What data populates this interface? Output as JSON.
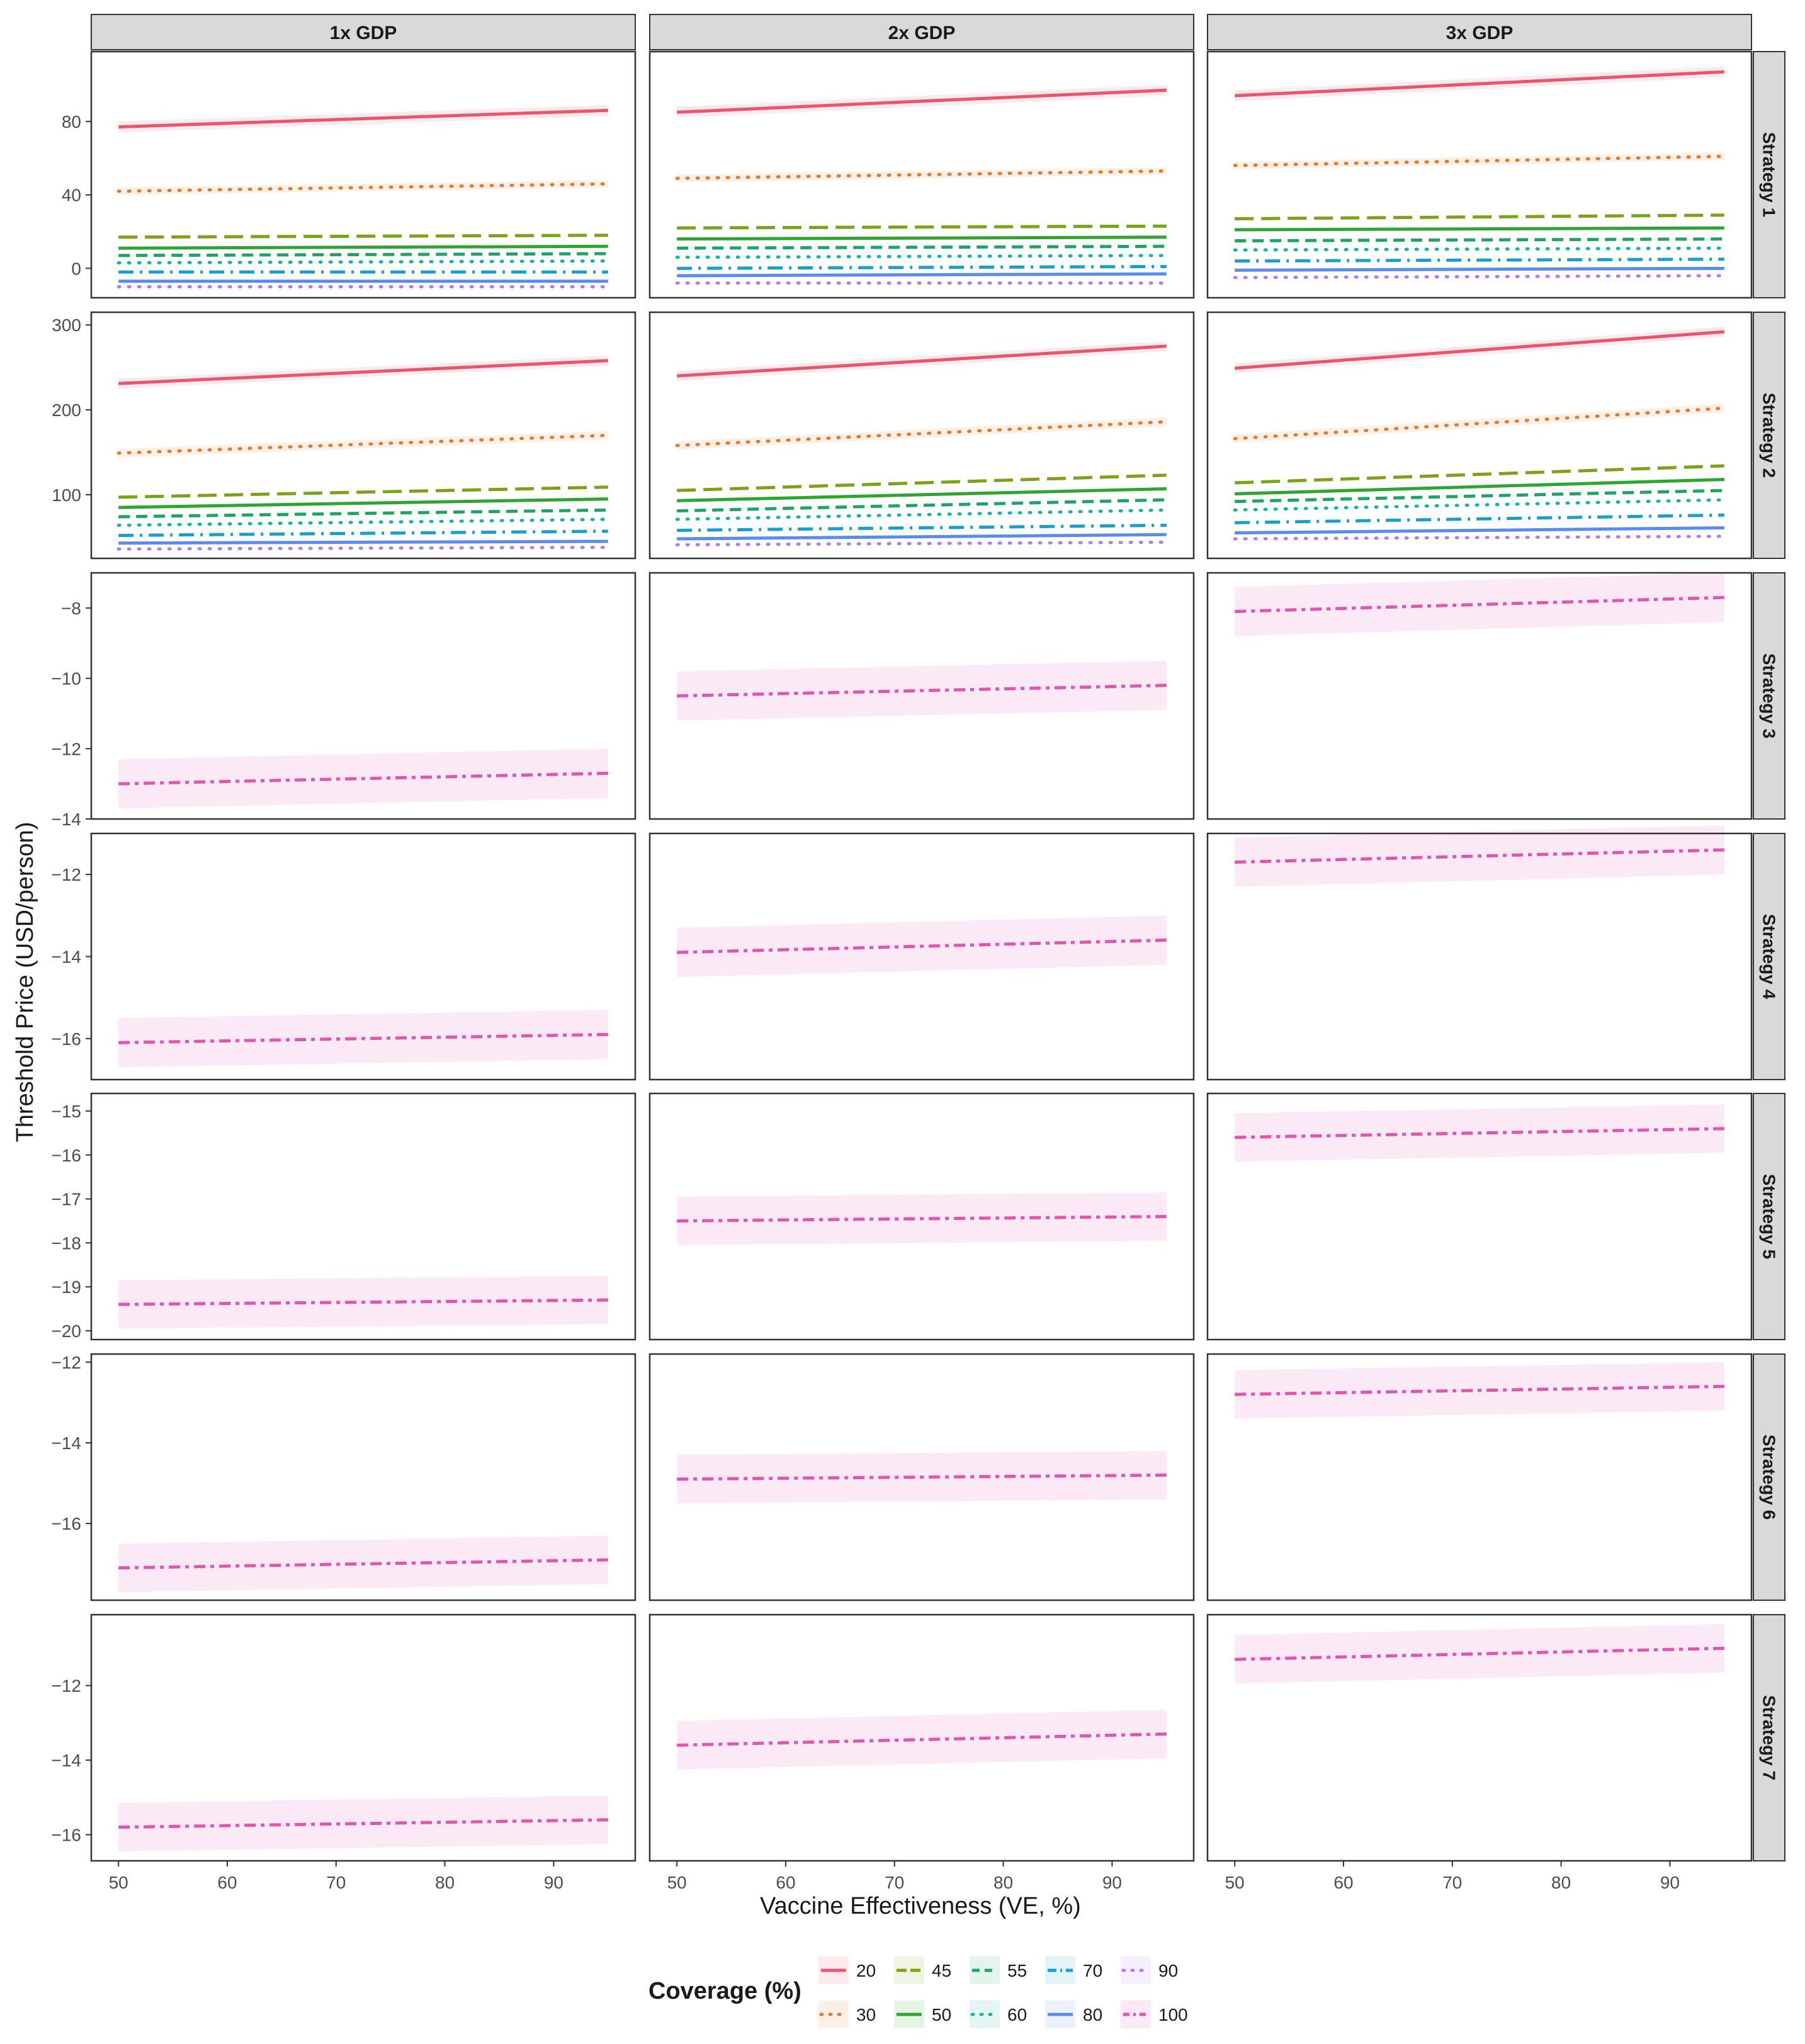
{
  "chart_data": {
    "type": "line",
    "facet_columns": [
      "1x GDP",
      "2x GDP",
      "3x GDP"
    ],
    "facet_rows": [
      "Strategy 1",
      "Strategy 2",
      "Strategy 3",
      "Strategy 4",
      "Strategy 5",
      "Strategy 6",
      "Strategy 7"
    ],
    "xlabel": "Vaccine Effectiveness (VE, %)",
    "ylabel": "Threshold Price (USD/person)",
    "x_ticks": [
      50,
      60,
      70,
      80,
      90
    ],
    "xlim": [
      47.5,
      97.5
    ],
    "x": [
      50,
      95
    ],
    "legend": {
      "title": "Coverage (%)",
      "position": "bottom",
      "items": [
        {
          "label": "20",
          "color": "#E8566E",
          "dash": "solid"
        },
        {
          "label": "30",
          "color": "#E07B2E",
          "dash": "dotted"
        },
        {
          "label": "45",
          "color": "#7BA31A",
          "dash": "longdash"
        },
        {
          "label": "50",
          "color": "#2EA52E",
          "dash": "solid"
        },
        {
          "label": "55",
          "color": "#1FA463",
          "dash": "dashed"
        },
        {
          "label": "60",
          "color": "#17B5A0",
          "dash": "dotted"
        },
        {
          "label": "70",
          "color": "#1AA0C8",
          "dash": "dashdot"
        },
        {
          "label": "80",
          "color": "#5A8DEB",
          "dash": "solid"
        },
        {
          "label": "90",
          "color": "#B57AF0",
          "dash": "dotted"
        },
        {
          "label": "100",
          "color": "#E055B2",
          "dash": "twodash"
        }
      ]
    },
    "panels": [
      {
        "row": "Strategy 1",
        "col": "1x GDP",
        "ylim": [
          -16,
          118
        ],
        "yticks": [
          0,
          40,
          80
        ],
        "series": [
          {
            "coverage": "20",
            "values": [
              77,
              86
            ],
            "band": 3
          },
          {
            "coverage": "30",
            "values": [
              42,
              46
            ],
            "band": 2
          },
          {
            "coverage": "45",
            "values": [
              17,
              18
            ]
          },
          {
            "coverage": "50",
            "values": [
              11,
              12
            ]
          },
          {
            "coverage": "55",
            "values": [
              7,
              8
            ]
          },
          {
            "coverage": "60",
            "values": [
              3,
              4
            ]
          },
          {
            "coverage": "70",
            "values": [
              -2,
              -2
            ]
          },
          {
            "coverage": "80",
            "values": [
              -7,
              -7
            ]
          },
          {
            "coverage": "90",
            "values": [
              -10,
              -10
            ]
          }
        ]
      },
      {
        "row": "Strategy 1",
        "col": "2x GDP",
        "ylim": [
          -16,
          118
        ],
        "yticks": [
          0,
          40,
          80
        ],
        "series": [
          {
            "coverage": "20",
            "values": [
              85,
              97
            ],
            "band": 3
          },
          {
            "coverage": "30",
            "values": [
              49,
              53
            ],
            "band": 2
          },
          {
            "coverage": "45",
            "values": [
              22,
              23
            ]
          },
          {
            "coverage": "50",
            "values": [
              16,
              17
            ]
          },
          {
            "coverage": "55",
            "values": [
              11,
              12
            ]
          },
          {
            "coverage": "60",
            "values": [
              6,
              7
            ]
          },
          {
            "coverage": "70",
            "values": [
              0,
              1
            ]
          },
          {
            "coverage": "80",
            "values": [
              -4,
              -3
            ]
          },
          {
            "coverage": "90",
            "values": [
              -8,
              -8
            ]
          }
        ]
      },
      {
        "row": "Strategy 1",
        "col": "3x GDP",
        "ylim": [
          -16,
          118
        ],
        "yticks": [
          0,
          40,
          80
        ],
        "series": [
          {
            "coverage": "20",
            "values": [
              94,
              107
            ],
            "band": 3
          },
          {
            "coverage": "30",
            "values": [
              56,
              61
            ],
            "band": 2
          },
          {
            "coverage": "45",
            "values": [
              27,
              29
            ]
          },
          {
            "coverage": "50",
            "values": [
              21,
              22
            ]
          },
          {
            "coverage": "55",
            "values": [
              15,
              16
            ]
          },
          {
            "coverage": "60",
            "values": [
              10,
              11
            ]
          },
          {
            "coverage": "70",
            "values": [
              4,
              5
            ]
          },
          {
            "coverage": "80",
            "values": [
              -1,
              0
            ]
          },
          {
            "coverage": "90",
            "values": [
              -5,
              -4
            ]
          }
        ]
      },
      {
        "row": "Strategy 2",
        "col": "1x GDP",
        "ylim": [
          25,
          315
        ],
        "yticks": [
          100,
          200,
          300
        ],
        "series": [
          {
            "coverage": "20",
            "values": [
              231,
              258
            ],
            "band": 6
          },
          {
            "coverage": "30",
            "values": [
              149,
              170
            ],
            "band": 5
          },
          {
            "coverage": "45",
            "values": [
              97,
              109
            ]
          },
          {
            "coverage": "50",
            "values": [
              85,
              95
            ]
          },
          {
            "coverage": "55",
            "values": [
              74,
              82
            ]
          },
          {
            "coverage": "60",
            "values": [
              64,
              71
            ]
          },
          {
            "coverage": "70",
            "values": [
              52,
              57
            ]
          },
          {
            "coverage": "80",
            "values": [
              43,
              45
            ]
          },
          {
            "coverage": "90",
            "values": [
              36,
              38
            ]
          }
        ]
      },
      {
        "row": "Strategy 2",
        "col": "2x GDP",
        "ylim": [
          25,
          315
        ],
        "yticks": [
          100,
          200,
          300
        ],
        "series": [
          {
            "coverage": "20",
            "values": [
              240,
              275
            ],
            "band": 6
          },
          {
            "coverage": "30",
            "values": [
              158,
              186
            ],
            "band": 5
          },
          {
            "coverage": "45",
            "values": [
              105,
              123
            ]
          },
          {
            "coverage": "50",
            "values": [
              93,
              107
            ]
          },
          {
            "coverage": "55",
            "values": [
              81,
              94
            ]
          },
          {
            "coverage": "60",
            "values": [
              71,
              82
            ]
          },
          {
            "coverage": "70",
            "values": [
              58,
              64
            ]
          },
          {
            "coverage": "80",
            "values": [
              48,
              53
            ]
          },
          {
            "coverage": "90",
            "values": [
              41,
              44
            ]
          }
        ]
      },
      {
        "row": "Strategy 2",
        "col": "3x GDP",
        "ylim": [
          25,
          315
        ],
        "yticks": [
          100,
          200,
          300
        ],
        "series": [
          {
            "coverage": "20",
            "values": [
              249,
              292
            ],
            "band": 6
          },
          {
            "coverage": "30",
            "values": [
              166,
              202
            ],
            "band": 5
          },
          {
            "coverage": "45",
            "values": [
              114,
              134
            ]
          },
          {
            "coverage": "50",
            "values": [
              101,
              118
            ]
          },
          {
            "coverage": "55",
            "values": [
              92,
              105
            ]
          },
          {
            "coverage": "60",
            "values": [
              82,
              94
            ]
          },
          {
            "coverage": "70",
            "values": [
              67,
              76
            ]
          },
          {
            "coverage": "80",
            "values": [
              55,
              61
            ]
          },
          {
            "coverage": "90",
            "values": [
              48,
              51
            ]
          }
        ]
      },
      {
        "row": "Strategy 3",
        "col": "1x GDP",
        "ylim": [
          -14,
          -7
        ],
        "yticks": [
          -14,
          -12,
          -10,
          -8
        ],
        "series": [
          {
            "coverage": "100",
            "values": [
              -13.0,
              -12.7
            ],
            "band": 0.7
          }
        ]
      },
      {
        "row": "Strategy 3",
        "col": "2x GDP",
        "ylim": [
          -14,
          -7
        ],
        "yticks": [
          -14,
          -12,
          -10,
          -8
        ],
        "series": [
          {
            "coverage": "100",
            "values": [
              -10.5,
              -10.2
            ],
            "band": 0.7
          }
        ]
      },
      {
        "row": "Strategy 3",
        "col": "3x GDP",
        "ylim": [
          -14,
          -7
        ],
        "yticks": [
          -14,
          -12,
          -10,
          -8
        ],
        "series": [
          {
            "coverage": "100",
            "values": [
              -8.1,
              -7.7
            ],
            "band": 0.7
          }
        ]
      },
      {
        "row": "Strategy 4",
        "col": "1x GDP",
        "ylim": [
          -17,
          -11
        ],
        "yticks": [
          -16,
          -14,
          -12
        ],
        "series": [
          {
            "coverage": "100",
            "values": [
              -16.1,
              -15.9
            ],
            "band": 0.6
          }
        ]
      },
      {
        "row": "Strategy 4",
        "col": "2x GDP",
        "ylim": [
          -17,
          -11
        ],
        "yticks": [
          -16,
          -14,
          -12
        ],
        "series": [
          {
            "coverage": "100",
            "values": [
              -13.9,
              -13.6
            ],
            "band": 0.6
          }
        ]
      },
      {
        "row": "Strategy 4",
        "col": "3x GDP",
        "ylim": [
          -17,
          -11
        ],
        "yticks": [
          -16,
          -14,
          -12
        ],
        "series": [
          {
            "coverage": "100",
            "values": [
              -11.7,
              -11.4
            ],
            "band": 0.6
          }
        ]
      },
      {
        "row": "Strategy 5",
        "col": "1x GDP",
        "ylim": [
          -20.2,
          -14.6
        ],
        "yticks": [
          -20,
          -19,
          -18,
          -17,
          -16,
          -15
        ],
        "series": [
          {
            "coverage": "100",
            "values": [
              -19.4,
              -19.3
            ],
            "band": 0.55
          }
        ]
      },
      {
        "row": "Strategy 5",
        "col": "2x GDP",
        "ylim": [
          -20.2,
          -14.6
        ],
        "yticks": [
          -20,
          -19,
          -18,
          -17,
          -16,
          -15
        ],
        "series": [
          {
            "coverage": "100",
            "values": [
              -17.5,
              -17.4
            ],
            "band": 0.55
          }
        ]
      },
      {
        "row": "Strategy 5",
        "col": "3x GDP",
        "ylim": [
          -20.2,
          -14.6
        ],
        "yticks": [
          -20,
          -19,
          -18,
          -17,
          -16,
          -15
        ],
        "series": [
          {
            "coverage": "100",
            "values": [
              -15.6,
              -15.4
            ],
            "band": 0.55
          }
        ]
      },
      {
        "row": "Strategy 6",
        "col": "1x GDP",
        "ylim": [
          -17.9,
          -11.8
        ],
        "yticks": [
          -16,
          -14,
          -12
        ],
        "series": [
          {
            "coverage": "100",
            "values": [
              -17.1,
              -16.9
            ],
            "band": 0.6
          }
        ]
      },
      {
        "row": "Strategy 6",
        "col": "2x GDP",
        "ylim": [
          -17.9,
          -11.8
        ],
        "yticks": [
          -16,
          -14,
          -12
        ],
        "series": [
          {
            "coverage": "100",
            "values": [
              -14.9,
              -14.8
            ],
            "band": 0.6
          }
        ]
      },
      {
        "row": "Strategy 6",
        "col": "3x GDP",
        "ylim": [
          -17.9,
          -11.8
        ],
        "yticks": [
          -16,
          -14,
          -12
        ],
        "series": [
          {
            "coverage": "100",
            "values": [
              -12.8,
              -12.6
            ],
            "band": 0.6
          }
        ]
      },
      {
        "row": "Strategy 7",
        "col": "1x GDP",
        "ylim": [
          -16.7,
          -10.1
        ],
        "yticks": [
          -16,
          -14,
          -12
        ],
        "series": [
          {
            "coverage": "100",
            "values": [
              -15.8,
              -15.6
            ],
            "band": 0.65
          }
        ]
      },
      {
        "row": "Strategy 7",
        "col": "2x GDP",
        "ylim": [
          -16.7,
          -10.1
        ],
        "yticks": [
          -16,
          -14,
          -12
        ],
        "series": [
          {
            "coverage": "100",
            "values": [
              -13.6,
              -13.3
            ],
            "band": 0.65
          }
        ]
      },
      {
        "row": "Strategy 7",
        "col": "3x GDP",
        "ylim": [
          -16.7,
          -10.1
        ],
        "yticks": [
          -16,
          -14,
          -12
        ],
        "series": [
          {
            "coverage": "100",
            "values": [
              -11.3,
              -11.0
            ],
            "band": 0.65
          }
        ]
      }
    ]
  }
}
